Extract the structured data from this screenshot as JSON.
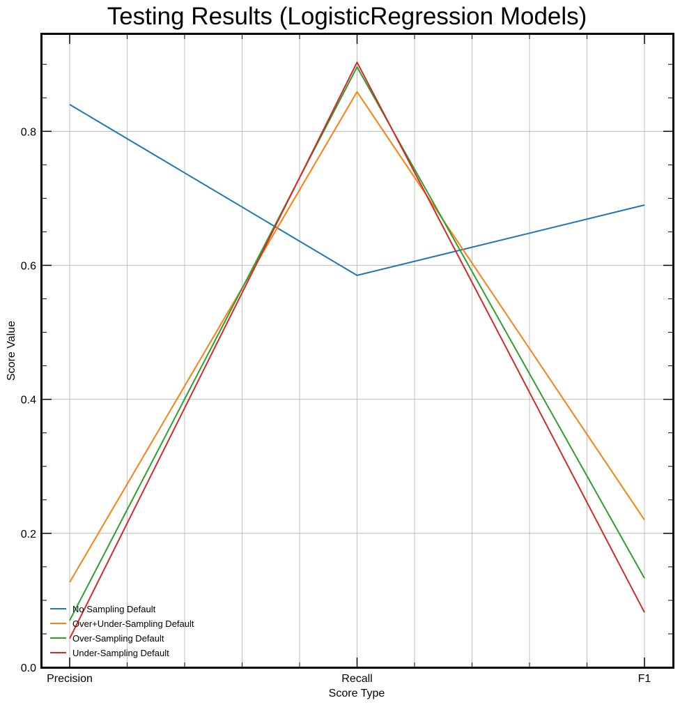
{
  "chart_data": {
    "type": "line",
    "title": "Testing Results (LogisticRegression Models)",
    "xlabel": "Score Type",
    "ylabel": "Score Value",
    "categories": [
      "Precision",
      "Recall",
      "F1"
    ],
    "ylim": [
      0,
      0.945
    ],
    "yticks": [
      0.0,
      0.2,
      0.4,
      0.6,
      0.8
    ],
    "ytick_labels": [
      "0.0",
      "0.2",
      "0.4",
      "0.6",
      "0.8"
    ],
    "grid": true,
    "legend_position": "lower-left",
    "series": [
      {
        "name": "No Sampling Default",
        "color": "#1f77b4",
        "values": [
          0.84,
          0.585,
          0.69
        ]
      },
      {
        "name": "Over+Under-Sampling Default",
        "color": "#ff7f0e",
        "values": [
          0.127,
          0.859,
          0.22
        ]
      },
      {
        "name": "Over-Sampling Default",
        "color": "#2ca02c",
        "values": [
          0.07,
          0.896,
          0.133
        ]
      },
      {
        "name": "Under-Sampling Default",
        "color": "#d62728",
        "values": [
          0.043,
          0.903,
          0.082
        ]
      }
    ]
  }
}
